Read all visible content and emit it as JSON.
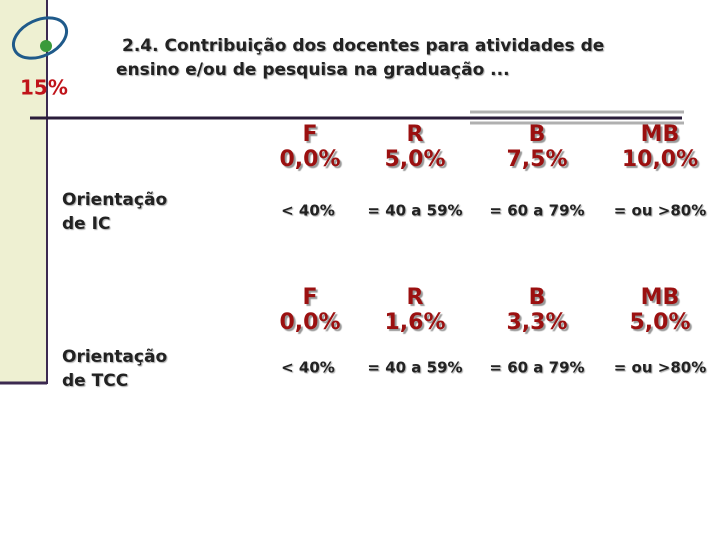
{
  "badge": "15%",
  "title_lines": [
    "2.4. Contribuição dos docentes para atividades de",
    "ensino e/ou de pesquisa na graduação ..."
  ],
  "blocks": [
    {
      "label_lines": [
        "Orientação",
        "de IC"
      ],
      "grades": [
        {
          "grade": "F",
          "value": "0,0%",
          "range": "< 40%"
        },
        {
          "grade": "R",
          "value": "5,0%",
          "range": "= 40 a 59%"
        },
        {
          "grade": "B",
          "value": "7,5%",
          "range": "= 60 a 79%"
        },
        {
          "grade": "MB",
          "value": "10,0%",
          "range": "= ou >80%"
        }
      ]
    },
    {
      "label_lines": [
        "Orientação",
        "de TCC"
      ],
      "grades": [
        {
          "grade": "F",
          "value": "0,0%",
          "range": "< 40%"
        },
        {
          "grade": "R",
          "value": "1,6%",
          "range": "= 40 a 59%"
        },
        {
          "grade": "B",
          "value": "3,3%",
          "range": "= 60 a 79%"
        },
        {
          "grade": "MB",
          "value": "5,0%",
          "range": "= ou >80%"
        }
      ]
    }
  ]
}
